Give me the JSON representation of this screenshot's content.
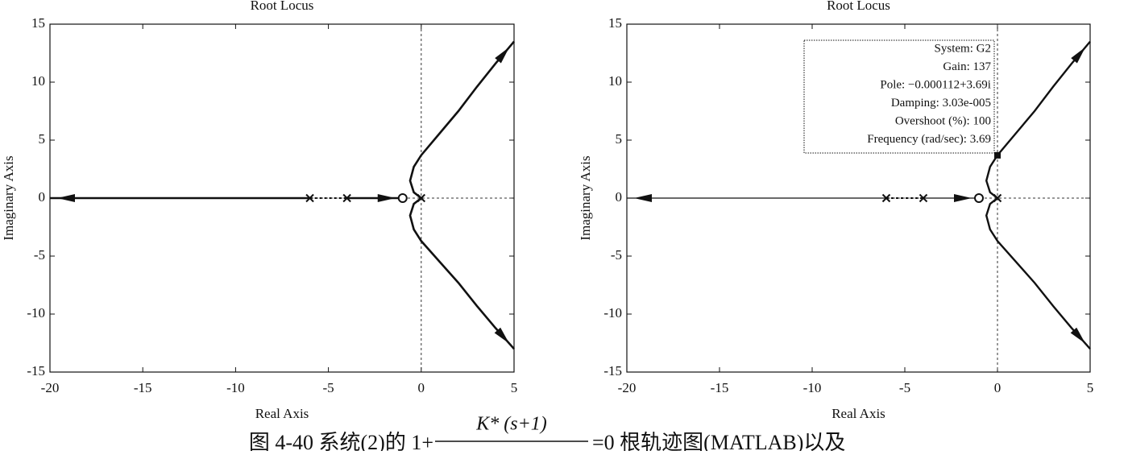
{
  "chart_data": [
    {
      "type": "line",
      "title": "Root Locus",
      "xlabel": "Real Axis",
      "ylabel": "Imaginary Axis",
      "xlim": [
        -20,
        5
      ],
      "ylim": [
        -15,
        15
      ],
      "xticks": [
        -20,
        -15,
        -10,
        -5,
        0,
        5
      ],
      "yticks": [
        -15,
        -10,
        -5,
        0,
        5,
        10,
        15
      ],
      "grid": false,
      "crosshair": true,
      "series": [
        {
          "color": "#111",
          "linewidth": 2.6,
          "x": [
            -6,
            -20
          ],
          "values": [
            0,
            0
          ]
        },
        {
          "color": "#111",
          "linewidth": 2.6,
          "x": [
            -4,
            -1
          ],
          "values": [
            0,
            0
          ]
        },
        {
          "color": "#111",
          "linewidth": 2.6,
          "x": [
            0,
            -0.4,
            -0.6,
            -0.4,
            0,
            1,
            2,
            3,
            4,
            5
          ],
          "values": [
            0,
            0.5,
            1.5,
            2.7,
            3.7,
            5.6,
            7.5,
            9.6,
            11.6,
            13.5
          ]
        },
        {
          "color": "#111",
          "linewidth": 2.6,
          "x": [
            0,
            -0.4,
            -0.6,
            -0.4,
            0,
            1,
            2,
            3,
            4,
            5
          ],
          "values": [
            0,
            -0.5,
            -1.5,
            -2.7,
            -3.7,
            -5.5,
            -7.3,
            -9.3,
            -11.2,
            -13
          ]
        }
      ],
      "poles": {
        "x": [
          -6,
          -4,
          0
        ],
        "values": [
          0,
          0,
          0
        ]
      },
      "zeros": {
        "x": [
          -1
        ],
        "values": [
          0
        ]
      }
    },
    {
      "type": "line",
      "title": "Root Locus",
      "xlabel": "Real Axis",
      "ylabel": "Imaginary Axis",
      "xlim": [
        -20,
        5
      ],
      "ylim": [
        -15,
        15
      ],
      "xticks": [
        -20,
        -15,
        -10,
        -5,
        0,
        5
      ],
      "yticks": [
        -15,
        -10,
        -5,
        0,
        5,
        10,
        15
      ],
      "grid": false,
      "crosshair": true,
      "series": [
        {
          "color": "#111",
          "linewidth": 1.2,
          "x": [
            -6,
            -20
          ],
          "values": [
            0,
            0
          ]
        },
        {
          "color": "#111",
          "linewidth": 1.2,
          "x": [
            -4,
            -1
          ],
          "values": [
            0,
            0
          ]
        },
        {
          "color": "#111",
          "linewidth": 2.4,
          "x": [
            0,
            -0.4,
            -0.6,
            -0.4,
            0,
            1,
            2,
            3,
            4,
            5
          ],
          "values": [
            0,
            0.5,
            1.5,
            2.7,
            3.7,
            5.6,
            7.5,
            9.6,
            11.6,
            13.5
          ]
        },
        {
          "color": "#111",
          "linewidth": 2.4,
          "x": [
            0,
            -0.4,
            -0.6,
            -0.4,
            0,
            1,
            2,
            3,
            4,
            5
          ],
          "values": [
            0,
            -0.5,
            -1.5,
            -2.7,
            -3.7,
            -5.5,
            -7.3,
            -9.3,
            -11.2,
            -13
          ]
        }
      ],
      "poles": {
        "x": [
          -6,
          -4,
          0
        ],
        "values": [
          0,
          0,
          0
        ]
      },
      "zeros": {
        "x": [
          -1
        ],
        "values": [
          0
        ]
      },
      "datatip": {
        "x": -0.000112,
        "y": 3.69,
        "text": [
          "System: G2",
          "Gain: 137",
          "Pole: −0.000112+3.69i",
          "Damping: 3.03e-005",
          "Overshoot (%): 100",
          "Frequency (rad/sec): 3.69"
        ]
      }
    }
  ],
  "caption": {
    "left": "图 4-40   系统(2)的 1+",
    "numerator": "K* (s+1)",
    "right": "=0 根轨迹图(MATLAB)以及"
  }
}
